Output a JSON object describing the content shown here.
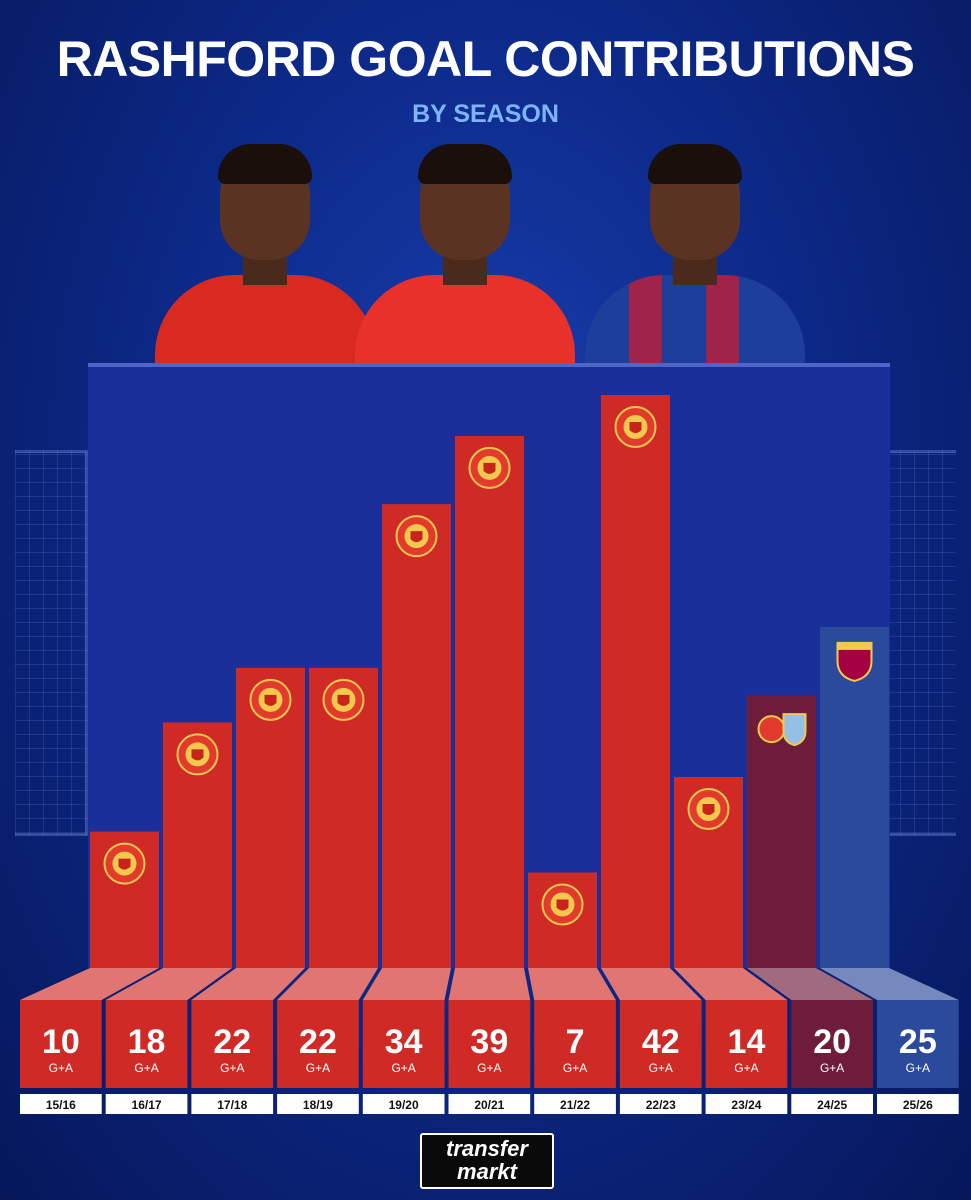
{
  "header": {
    "title": "RASHFORD GOAL CONTRIBUTIONS",
    "subtitle": "BY SEASON"
  },
  "colors": {
    "man_utd": "#cf2a26",
    "aston_villa": "#6f1b3a",
    "barcelona": "#2b4a9c",
    "background": "#0d2a8a"
  },
  "chart_data": {
    "type": "bar",
    "categories": [
      "15/16",
      "16/17",
      "17/18",
      "18/19",
      "19/20",
      "20/21",
      "21/22",
      "22/23",
      "23/24",
      "24/25",
      "25/26"
    ],
    "values": [
      10,
      18,
      22,
      22,
      34,
      39,
      7,
      42,
      14,
      20,
      25
    ],
    "value_unit": "G+A",
    "clubs": [
      "man-utd",
      "man-utd",
      "man-utd",
      "man-utd",
      "man-utd",
      "man-utd",
      "man-utd",
      "man-utd",
      "man-utd",
      "man-utd+aston-villa",
      "barcelona"
    ],
    "title": "RASHFORD GOAL CONTRIBUTIONS",
    "subtitle": "BY SEASON"
  },
  "footer": {
    "logo_line1": "transfer",
    "logo_line2": "markt"
  }
}
